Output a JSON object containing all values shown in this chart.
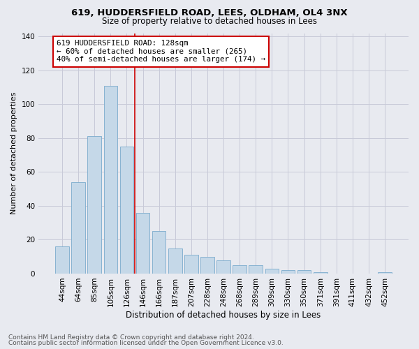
{
  "title1": "619, HUDDERSFIELD ROAD, LEES, OLDHAM, OL4 3NX",
  "title2": "Size of property relative to detached houses in Lees",
  "xlabel": "Distribution of detached houses by size in Lees",
  "ylabel": "Number of detached properties",
  "categories": [
    "44sqm",
    "64sqm",
    "85sqm",
    "105sqm",
    "126sqm",
    "146sqm",
    "166sqm",
    "187sqm",
    "207sqm",
    "228sqm",
    "248sqm",
    "268sqm",
    "289sqm",
    "309sqm",
    "330sqm",
    "350sqm",
    "371sqm",
    "391sqm",
    "411sqm",
    "432sqm",
    "452sqm"
  ],
  "values": [
    16,
    54,
    81,
    111,
    75,
    36,
    25,
    15,
    11,
    10,
    8,
    5,
    5,
    3,
    2,
    2,
    1,
    0,
    0,
    0,
    1
  ],
  "bar_color": "#c5d8e8",
  "bar_edge_color": "#7aabcc",
  "annotation_text": "619 HUDDERSFIELD ROAD: 128sqm\n← 60% of detached houses are smaller (265)\n40% of semi-detached houses are larger (174) →",
  "annotation_box_color": "#ffffff",
  "annotation_border_color": "#cc0000",
  "vline_color": "#cc0000",
  "ylim": [
    0,
    142
  ],
  "yticks": [
    0,
    20,
    40,
    60,
    80,
    100,
    120,
    140
  ],
  "footnote1": "Contains HM Land Registry data © Crown copyright and database right 2024.",
  "footnote2": "Contains public sector information licensed under the Open Government Licence v3.0.",
  "bg_color": "#e8eaf0",
  "grid_color": "#c8cad8",
  "title1_fontsize": 9.5,
  "title2_fontsize": 8.5,
  "xlabel_fontsize": 8.5,
  "ylabel_fontsize": 8,
  "tick_fontsize": 7.5,
  "annotation_fontsize": 7.8,
  "footnote_fontsize": 6.5,
  "vline_x_index": 4.5
}
